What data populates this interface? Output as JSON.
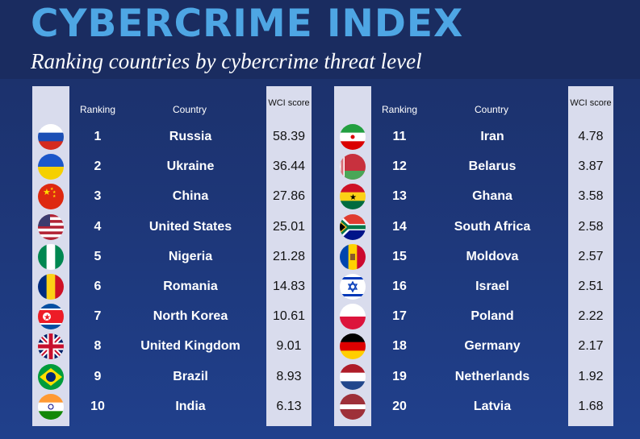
{
  "title": "CYBERCRIME INDEX",
  "subtitle": "Ranking countries by cybercrime threat level",
  "columns": {
    "rank": "Ranking",
    "country": "Country",
    "score": "WCI score"
  },
  "chart_data": {
    "type": "table",
    "title": "CYBERCRIME INDEX",
    "subtitle": "Ranking countries by cybercrime threat level",
    "columns": [
      "Ranking",
      "Country",
      "WCI score"
    ],
    "rows": [
      {
        "rank": "1",
        "country": "Russia",
        "score": "58.39",
        "flag": "russia-flag-icon"
      },
      {
        "rank": "2",
        "country": "Ukraine",
        "score": "36.44",
        "flag": "ukraine-flag-icon"
      },
      {
        "rank": "3",
        "country": "China",
        "score": "27.86",
        "flag": "china-flag-icon"
      },
      {
        "rank": "4",
        "country": "United States",
        "score": "25.01",
        "flag": "usa-flag-icon"
      },
      {
        "rank": "5",
        "country": "Nigeria",
        "score": "21.28",
        "flag": "nigeria-flag-icon"
      },
      {
        "rank": "6",
        "country": "Romania",
        "score": "14.83",
        "flag": "romania-flag-icon"
      },
      {
        "rank": "7",
        "country": "North Korea",
        "score": "10.61",
        "flag": "north-korea-flag-icon"
      },
      {
        "rank": "8",
        "country": "United Kingdom",
        "score": "9.01",
        "flag": "uk-flag-icon"
      },
      {
        "rank": "9",
        "country": "Brazil",
        "score": "8.93",
        "flag": "brazil-flag-icon"
      },
      {
        "rank": "10",
        "country": "India",
        "score": "6.13",
        "flag": "india-flag-icon"
      },
      {
        "rank": "11",
        "country": "Iran",
        "score": "4.78",
        "flag": "iran-flag-icon"
      },
      {
        "rank": "12",
        "country": "Belarus",
        "score": "3.87",
        "flag": "belarus-flag-icon"
      },
      {
        "rank": "13",
        "country": "Ghana",
        "score": "3.58",
        "flag": "ghana-flag-icon"
      },
      {
        "rank": "14",
        "country": "South Africa",
        "score": "2.58",
        "flag": "south-africa-flag-icon"
      },
      {
        "rank": "15",
        "country": "Moldova",
        "score": "2.57",
        "flag": "moldova-flag-icon"
      },
      {
        "rank": "16",
        "country": "Israel",
        "score": "2.51",
        "flag": "israel-flag-icon"
      },
      {
        "rank": "17",
        "country": "Poland",
        "score": "2.22",
        "flag": "poland-flag-icon"
      },
      {
        "rank": "18",
        "country": "Germany",
        "score": "2.17",
        "flag": "germany-flag-icon"
      },
      {
        "rank": "19",
        "country": "Netherlands",
        "score": "1.92",
        "flag": "netherlands-flag-icon"
      },
      {
        "rank": "20",
        "country": "Latvia",
        "score": "1.68",
        "flag": "latvia-flag-icon"
      }
    ]
  },
  "colors": {
    "title": "#4ea6e4",
    "background": "#1d3575",
    "strip": "#d9dced"
  }
}
